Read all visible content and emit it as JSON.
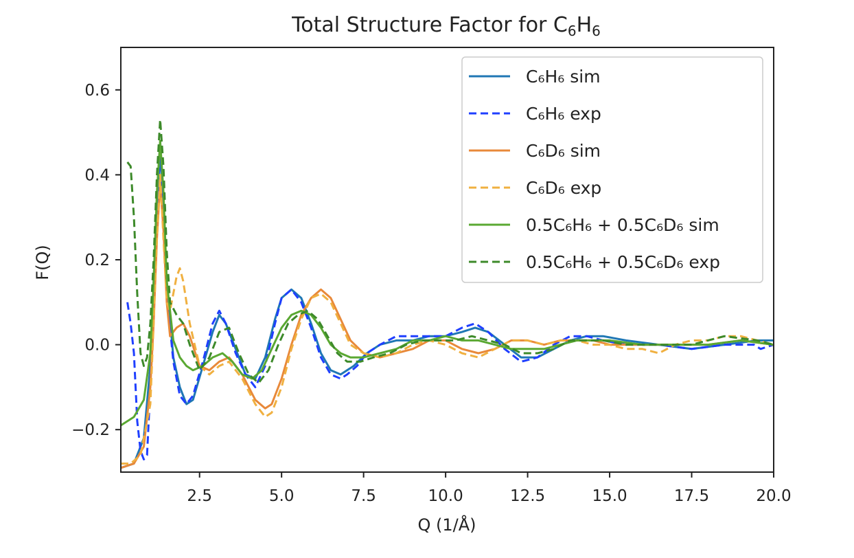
{
  "chart_data": {
    "type": "line",
    "title": "Total Structure Factor for C",
    "title_sub1": "6",
    "title_mid": "H",
    "title_sub2": "6",
    "xlabel": "Q (1/Å)",
    "ylabel": "F(Q)",
    "xlim": [
      0.1,
      20.0
    ],
    "ylim": [
      -0.3,
      0.7
    ],
    "xticks": [
      2.5,
      5.0,
      7.5,
      10.0,
      12.5,
      15.0,
      17.5,
      20.0
    ],
    "xtick_labels": [
      "2.5",
      "5.0",
      "7.5",
      "10.0",
      "12.5",
      "15.0",
      "17.5",
      "20.0"
    ],
    "yticks": [
      -0.2,
      0.0,
      0.2,
      0.4,
      0.6
    ],
    "ytick_labels": [
      "−0.2",
      "0.0",
      "0.2",
      "0.4",
      "0.6"
    ],
    "grid": false,
    "legend_position": "top-right",
    "series": [
      {
        "name": "C₆H₆ sim",
        "color": "#1f77b4",
        "dash": "solid",
        "x": [
          0.1,
          0.5,
          0.8,
          1.0,
          1.1,
          1.2,
          1.3,
          1.4,
          1.5,
          1.7,
          1.9,
          2.1,
          2.3,
          2.6,
          2.9,
          3.1,
          3.3,
          3.6,
          3.9,
          4.2,
          4.5,
          4.8,
          5.0,
          5.3,
          5.6,
          5.9,
          6.2,
          6.5,
          6.8,
          7.2,
          7.6,
          8.0,
          8.5,
          9.0,
          9.5,
          10.0,
          10.5,
          10.9,
          11.3,
          11.8,
          12.3,
          12.8,
          13.3,
          13.8,
          14.3,
          14.8,
          15.5,
          16.5,
          17.5,
          18.5,
          19.5,
          20.0
        ],
        "y": [
          -0.29,
          -0.28,
          -0.22,
          -0.05,
          0.15,
          0.33,
          0.45,
          0.32,
          0.15,
          -0.03,
          -0.1,
          -0.14,
          -0.13,
          -0.05,
          0.03,
          0.07,
          0.05,
          -0.01,
          -0.07,
          -0.08,
          -0.03,
          0.06,
          0.11,
          0.13,
          0.11,
          0.05,
          -0.02,
          -0.06,
          -0.07,
          -0.05,
          -0.02,
          0.0,
          0.01,
          0.01,
          0.02,
          0.02,
          0.03,
          0.04,
          0.03,
          0.0,
          -0.03,
          -0.03,
          -0.01,
          0.01,
          0.02,
          0.02,
          0.01,
          0.0,
          -0.01,
          0.0,
          0.01,
          0.01
        ]
      },
      {
        "name": "C₆H₆ exp",
        "color": "#1f3fff",
        "dash": "dashed",
        "x": [
          0.3,
          0.4,
          0.5,
          0.6,
          0.7,
          0.8,
          0.9,
          1.0,
          1.1,
          1.2,
          1.3,
          1.4,
          1.5,
          1.7,
          1.9,
          2.1,
          2.3,
          2.6,
          2.9,
          3.1,
          3.3,
          3.6,
          3.9,
          4.2,
          4.5,
          4.8,
          5.0,
          5.3,
          5.6,
          5.9,
          6.2,
          6.5,
          6.8,
          7.0,
          7.3,
          7.6,
          8.0,
          8.5,
          9.0,
          9.5,
          10.0,
          10.5,
          10.9,
          11.3,
          11.8,
          12.3,
          12.8,
          13.3,
          13.8,
          14.3,
          14.8,
          15.5,
          16.5,
          17.5,
          18.5,
          19.4,
          19.6,
          20.0
        ],
        "y": [
          0.1,
          0.05,
          -0.02,
          -0.18,
          -0.25,
          -0.27,
          -0.26,
          -0.1,
          0.1,
          0.3,
          0.48,
          0.33,
          0.12,
          -0.04,
          -0.12,
          -0.14,
          -0.12,
          -0.04,
          0.05,
          0.08,
          0.05,
          -0.02,
          -0.07,
          -0.1,
          -0.05,
          0.05,
          0.11,
          0.13,
          0.1,
          0.04,
          -0.03,
          -0.07,
          -0.08,
          -0.07,
          -0.05,
          -0.02,
          0.0,
          0.02,
          0.02,
          0.02,
          0.02,
          0.04,
          0.05,
          0.03,
          -0.01,
          -0.04,
          -0.03,
          0.0,
          0.02,
          0.02,
          0.01,
          0.0,
          0.0,
          -0.01,
          0.0,
          0.0,
          -0.01,
          0.0
        ]
      },
      {
        "name": "C₆D₆ sim",
        "color": "#e8893a",
        "dash": "solid",
        "x": [
          0.1,
          0.5,
          0.8,
          1.0,
          1.1,
          1.2,
          1.3,
          1.4,
          1.5,
          1.6,
          1.8,
          2.0,
          2.2,
          2.5,
          2.8,
          3.1,
          3.4,
          3.8,
          4.2,
          4.5,
          4.7,
          5.0,
          5.3,
          5.6,
          5.9,
          6.2,
          6.5,
          6.8,
          7.1,
          7.5,
          8.0,
          8.5,
          9.0,
          9.5,
          10.0,
          10.5,
          11.0,
          11.5,
          12.0,
          12.5,
          13.0,
          13.5,
          14.0,
          14.5,
          15.0,
          15.5,
          16.0,
          17.0,
          18.0,
          19.0,
          20.0
        ],
        "y": [
          -0.29,
          -0.28,
          -0.24,
          -0.1,
          0.05,
          0.25,
          0.38,
          0.27,
          0.1,
          0.02,
          0.04,
          0.05,
          0.02,
          -0.05,
          -0.06,
          -0.04,
          -0.03,
          -0.07,
          -0.13,
          -0.15,
          -0.14,
          -0.08,
          0.0,
          0.07,
          0.11,
          0.13,
          0.11,
          0.06,
          0.01,
          -0.02,
          -0.03,
          -0.02,
          -0.01,
          0.01,
          0.01,
          -0.01,
          -0.02,
          -0.01,
          0.01,
          0.01,
          0.0,
          0.01,
          0.01,
          0.01,
          0.0,
          0.0,
          0.0,
          0.0,
          0.0,
          0.01,
          0.0
        ]
      },
      {
        "name": "C₆D₆ exp",
        "color": "#f0b040",
        "dash": "dashed",
        "x": [
          0.1,
          0.4,
          0.7,
          1.0,
          1.1,
          1.2,
          1.3,
          1.4,
          1.5,
          1.6,
          1.8,
          1.9,
          2.0,
          2.2,
          2.5,
          2.8,
          3.1,
          3.4,
          3.8,
          4.2,
          4.5,
          4.7,
          5.0,
          5.3,
          5.6,
          5.9,
          6.2,
          6.5,
          6.8,
          7.1,
          7.5,
          8.0,
          8.5,
          9.0,
          9.5,
          10.0,
          10.5,
          11.0,
          11.5,
          12.0,
          12.5,
          13.0,
          13.5,
          14.0,
          14.5,
          15.0,
          15.5,
          16.0,
          16.5,
          17.0,
          17.5,
          18.0,
          18.5,
          19.0,
          19.5,
          20.0
        ],
        "y": [
          -0.28,
          -0.28,
          -0.26,
          -0.14,
          0.05,
          0.25,
          0.4,
          0.25,
          0.1,
          0.08,
          0.16,
          0.18,
          0.15,
          0.05,
          -0.05,
          -0.07,
          -0.05,
          -0.04,
          -0.08,
          -0.14,
          -0.17,
          -0.16,
          -0.1,
          -0.01,
          0.06,
          0.11,
          0.12,
          0.1,
          0.05,
          0.0,
          -0.02,
          -0.03,
          -0.02,
          0.0,
          0.01,
          0.0,
          -0.02,
          -0.03,
          -0.01,
          0.01,
          0.01,
          0.0,
          0.01,
          0.01,
          0.0,
          0.0,
          -0.01,
          -0.01,
          -0.02,
          0.0,
          0.01,
          0.01,
          0.02,
          0.02,
          0.01,
          0.0
        ]
      },
      {
        "name": "0.5C₆H₆ + 0.5C₆D₆ sim",
        "color": "#5aa832",
        "dash": "solid",
        "x": [
          0.1,
          0.5,
          0.8,
          1.0,
          1.1,
          1.2,
          1.3,
          1.4,
          1.5,
          1.7,
          1.9,
          2.1,
          2.3,
          2.6,
          2.9,
          3.2,
          3.5,
          3.8,
          4.1,
          4.4,
          4.7,
          5.0,
          5.3,
          5.6,
          5.9,
          6.2,
          6.5,
          6.8,
          7.1,
          7.5,
          8.0,
          8.5,
          9.0,
          9.5,
          10.0,
          10.5,
          11.0,
          11.5,
          12.0,
          12.5,
          13.0,
          13.5,
          14.0,
          14.5,
          15.0,
          16.0,
          17.0,
          18.0,
          19.0,
          20.0
        ],
        "y": [
          -0.19,
          -0.17,
          -0.13,
          -0.02,
          0.15,
          0.36,
          0.48,
          0.36,
          0.15,
          0.01,
          -0.03,
          -0.05,
          -0.06,
          -0.05,
          -0.03,
          -0.02,
          -0.04,
          -0.07,
          -0.08,
          -0.06,
          -0.01,
          0.04,
          0.07,
          0.08,
          0.07,
          0.04,
          0.0,
          -0.02,
          -0.03,
          -0.03,
          -0.02,
          -0.01,
          0.01,
          0.01,
          0.02,
          0.01,
          0.01,
          0.0,
          -0.01,
          -0.01,
          -0.01,
          0.0,
          0.01,
          0.01,
          0.01,
          0.0,
          0.0,
          0.0,
          0.01,
          0.0
        ]
      },
      {
        "name": "0.5C₆H₆ + 0.5C₆D₆ exp",
        "color": "#3d8a2a",
        "dash": "dashed",
        "x": [
          0.3,
          0.4,
          0.5,
          0.6,
          0.7,
          0.8,
          0.9,
          1.0,
          1.1,
          1.2,
          1.3,
          1.4,
          1.5,
          1.6,
          1.8,
          2.0,
          2.2,
          2.5,
          2.8,
          3.1,
          3.4,
          3.7,
          4.0,
          4.3,
          4.6,
          4.9,
          5.2,
          5.5,
          5.8,
          6.1,
          6.4,
          6.7,
          7.0,
          7.4,
          7.8,
          8.3,
          8.8,
          9.3,
          9.8,
          10.3,
          10.8,
          11.3,
          11.8,
          12.3,
          12.8,
          13.3,
          13.8,
          14.3,
          14.8,
          15.5,
          16.5,
          17.5,
          18.5,
          19.5,
          20.0
        ],
        "y": [
          0.43,
          0.42,
          0.3,
          0.12,
          -0.02,
          -0.05,
          -0.03,
          0.05,
          0.2,
          0.4,
          0.53,
          0.42,
          0.22,
          0.1,
          0.07,
          0.05,
          0.0,
          -0.06,
          -0.03,
          0.03,
          0.04,
          -0.02,
          -0.07,
          -0.09,
          -0.06,
          0.0,
          0.05,
          0.07,
          0.08,
          0.06,
          0.02,
          -0.02,
          -0.04,
          -0.04,
          -0.03,
          -0.02,
          0.0,
          0.01,
          0.01,
          0.01,
          0.02,
          0.01,
          0.0,
          -0.02,
          -0.02,
          -0.01,
          0.01,
          0.01,
          0.01,
          0.0,
          0.0,
          0.0,
          0.02,
          0.01,
          0.0
        ]
      }
    ]
  }
}
